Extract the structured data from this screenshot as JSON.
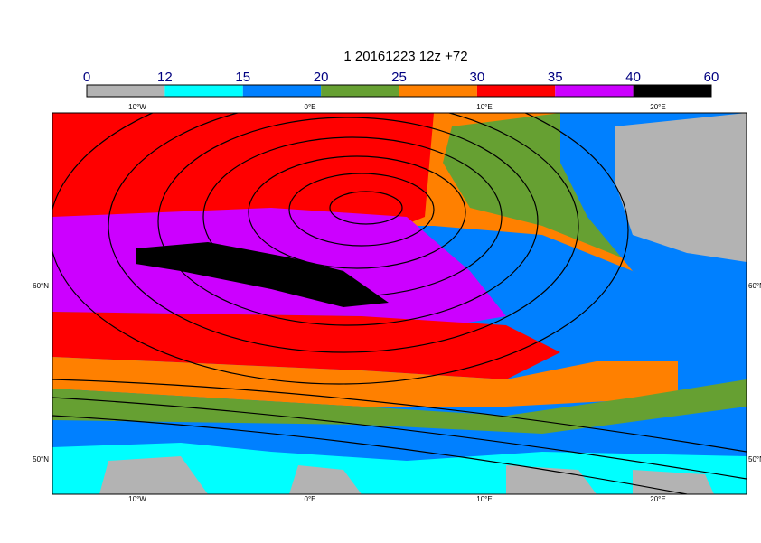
{
  "title": "1 20161223 12z +72",
  "colorbar": {
    "levels": [
      0,
      12,
      15,
      20,
      25,
      30,
      35,
      40,
      60
    ],
    "colors": [
      "#b3b3b3",
      "#00ffff",
      "#0080ff",
      "#66a032",
      "#ff8000",
      "#ff0000",
      "#cc00ff",
      "#000000"
    ]
  },
  "graticule": {
    "lon_labels": [
      "10°W",
      "0°E",
      "10°E",
      "20°E"
    ],
    "lat_labels": [
      "60°N",
      "50°N"
    ]
  }
}
